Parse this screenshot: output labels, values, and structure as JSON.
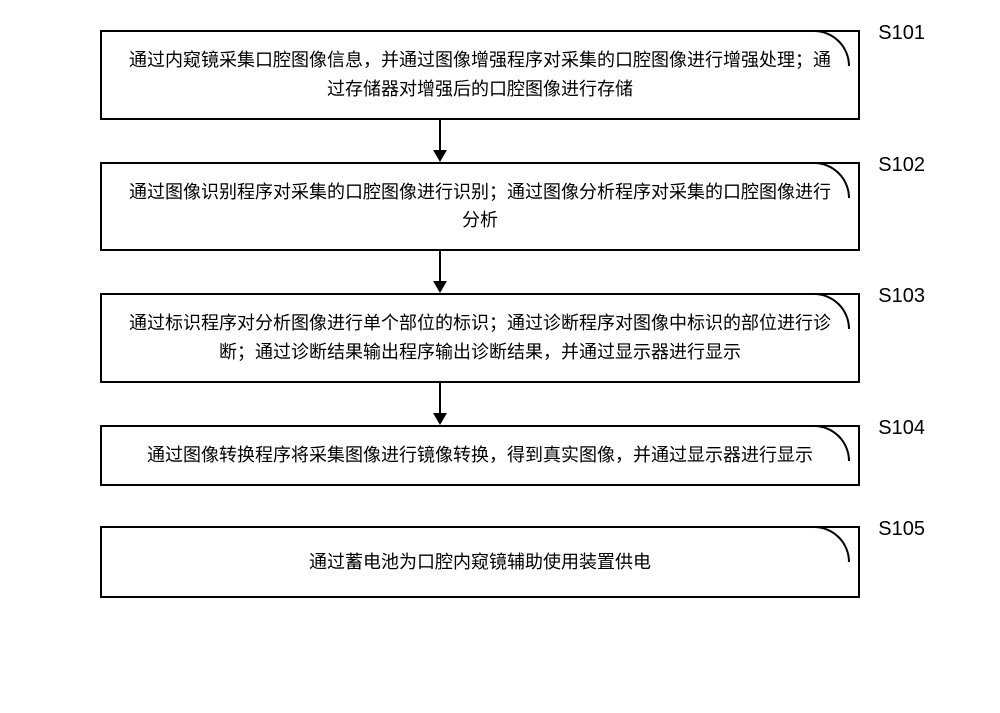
{
  "flowchart": {
    "type": "flowchart",
    "direction": "vertical",
    "box_border_color": "#000000",
    "box_border_width": 2,
    "box_background": "#ffffff",
    "text_color": "#000000",
    "font_size": 18,
    "label_font_size": 20,
    "arrow_color": "#000000",
    "steps": [
      {
        "id": "S101",
        "label": "S101",
        "text": "通过内窥镜采集口腔图像信息，并通过图像增强程序对采集的口腔图像进行增强处理；通过存储器对增强后的口腔图像进行存储",
        "has_arrow_after": true
      },
      {
        "id": "S102",
        "label": "S102",
        "text": "通过图像识别程序对采集的口腔图像进行识别；通过图像分析程序对采集的口腔图像进行分析",
        "has_arrow_after": true
      },
      {
        "id": "S103",
        "label": "S103",
        "text": "通过标识程序对分析图像进行单个部位的标识；通过诊断程序对图像中标识的部位进行诊断；通过诊断结果输出程序输出诊断结果，并通过显示器进行显示",
        "has_arrow_after": true
      },
      {
        "id": "S104",
        "label": "S104",
        "text": "通过图像转换程序将采集图像进行镜像转换，得到真实图像，并通过显示器进行显示",
        "has_arrow_after": false,
        "gap_after": true
      },
      {
        "id": "S105",
        "label": "S105",
        "text": "通过蓄电池为口腔内窥镜辅助使用装置供电",
        "has_arrow_after": false
      }
    ]
  }
}
